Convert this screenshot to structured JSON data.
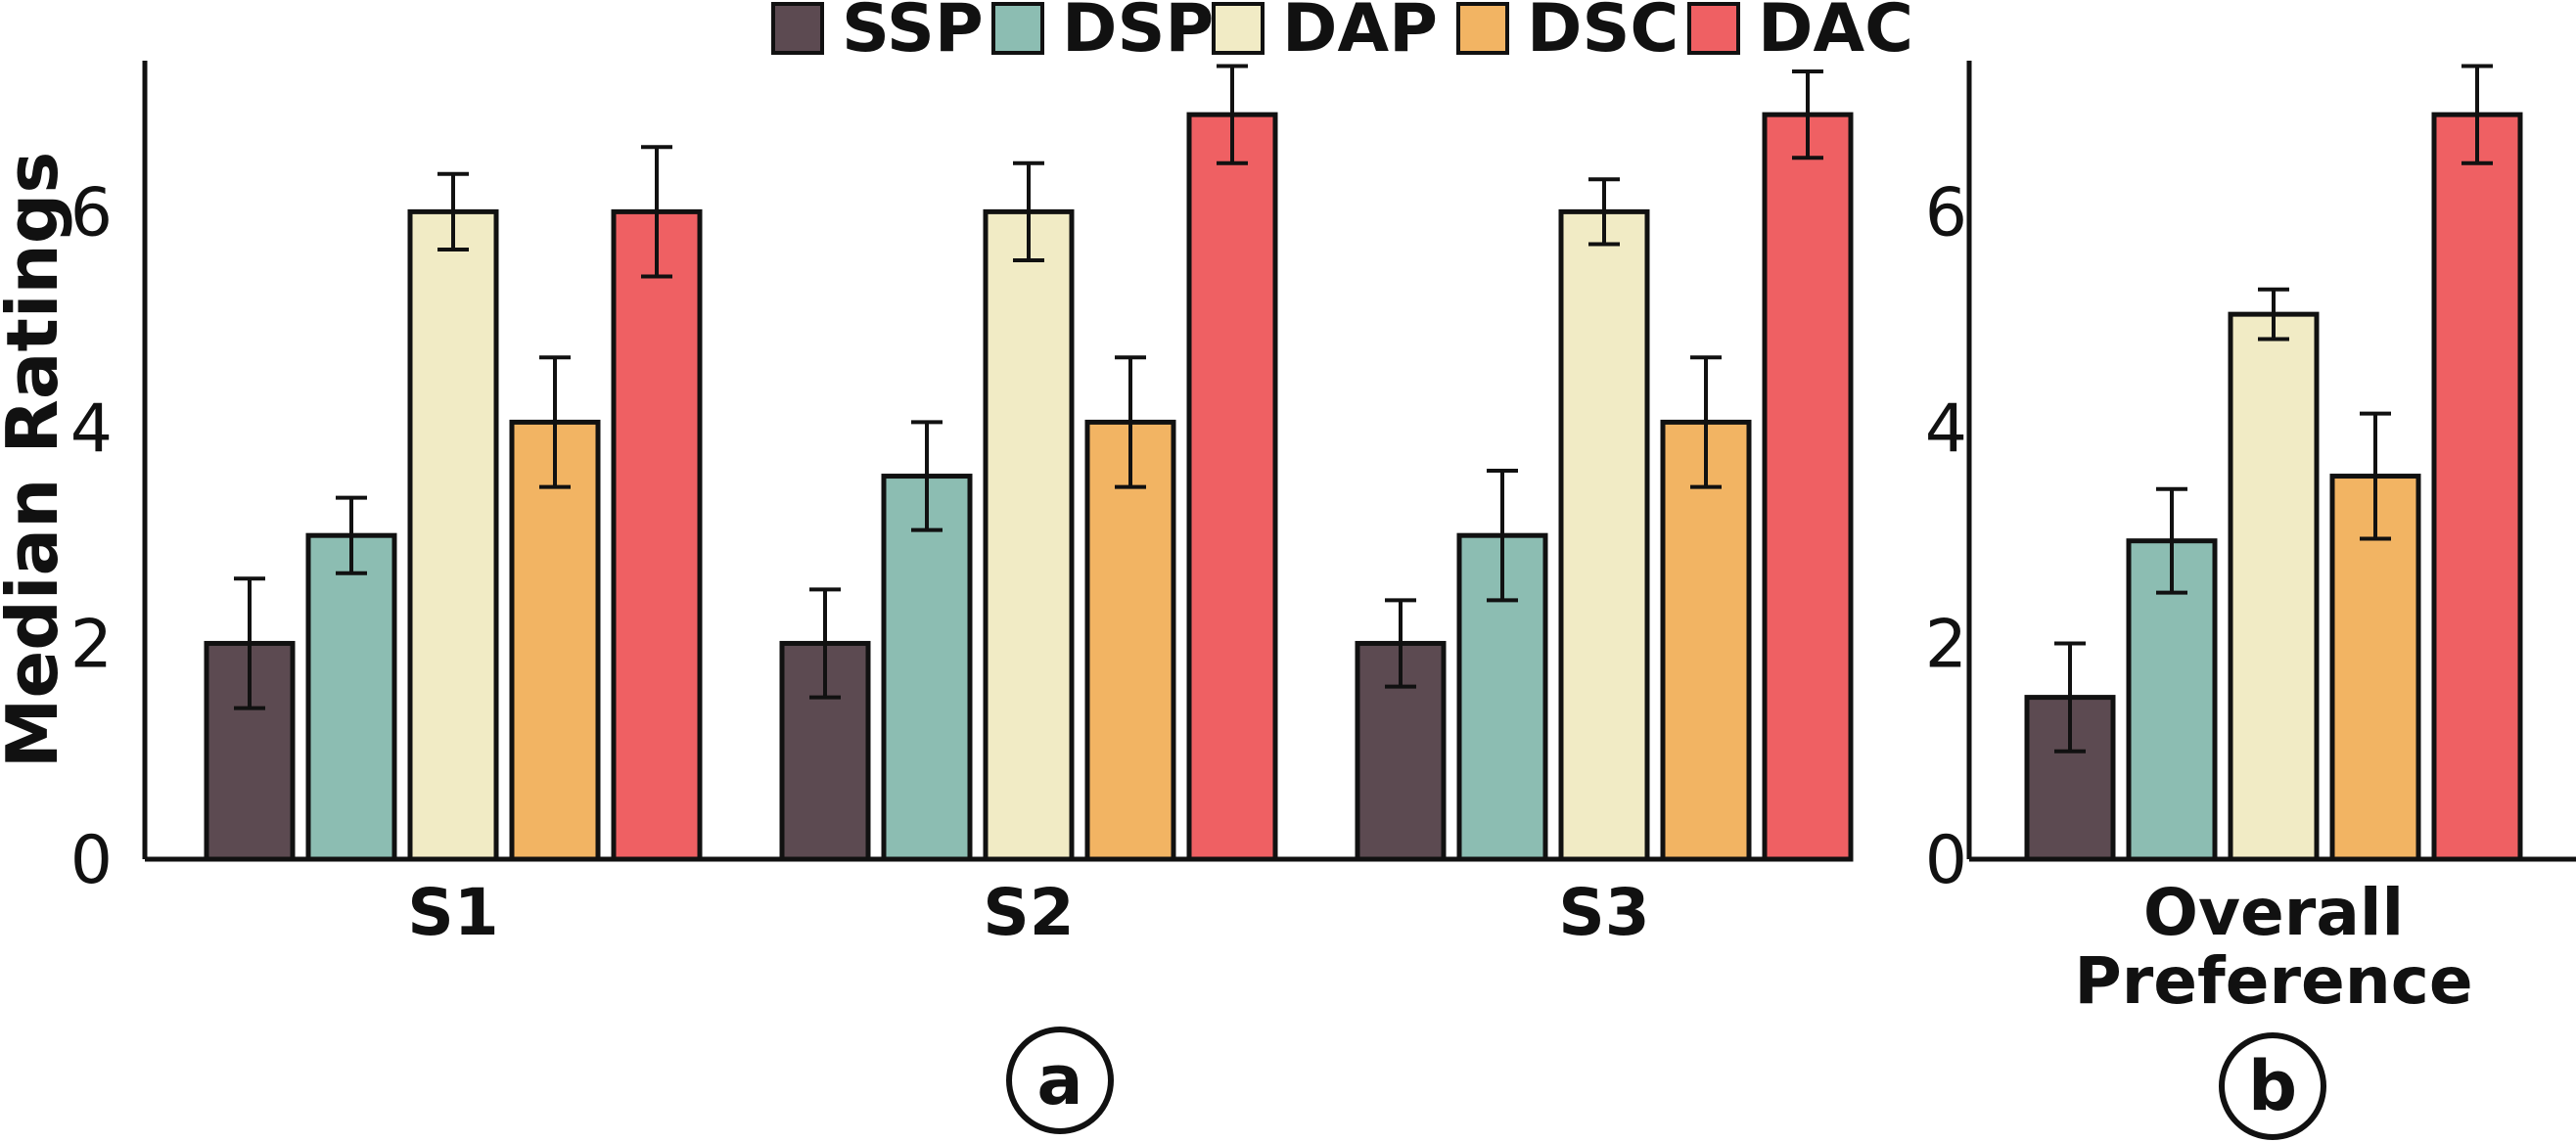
{
  "chart_data": [
    {
      "panel": "a",
      "type": "bar",
      "ylabel": "Median Ratings",
      "ylim": [
        0,
        7.4
      ],
      "yticks": [
        0,
        2,
        4,
        6
      ],
      "categories": [
        "S1",
        "S2",
        "S3"
      ],
      "series": [
        {
          "name": "SSP",
          "values": [
            2,
            2,
            2
          ],
          "err": [
            0.6,
            0.5,
            0.4
          ]
        },
        {
          "name": "DSP",
          "values": [
            3,
            3.55,
            3
          ],
          "err": [
            0.35,
            0.5,
            0.6
          ]
        },
        {
          "name": "DAP",
          "values": [
            6,
            6,
            6
          ],
          "err": [
            0.35,
            0.45,
            0.3
          ]
        },
        {
          "name": "DSC",
          "values": [
            4.05,
            4.05,
            4.05
          ],
          "err": [
            0.6,
            0.6,
            0.6
          ]
        },
        {
          "name": "DAC",
          "values": [
            6,
            6.9,
            6.9
          ],
          "err": [
            0.6,
            0.45,
            0.4
          ]
        }
      ]
    },
    {
      "panel": "b",
      "type": "bar",
      "ylim": [
        0,
        7.4
      ],
      "yticks": [
        0,
        2,
        4,
        6
      ],
      "categories": [
        "Overall Preference"
      ],
      "category_lines": [
        "Overall",
        "Preference"
      ],
      "series": [
        {
          "name": "SSP",
          "values": [
            1.5
          ],
          "err": [
            0.5
          ]
        },
        {
          "name": "DSP",
          "values": [
            2.95
          ],
          "err": [
            0.48
          ]
        },
        {
          "name": "DAP",
          "values": [
            5.05
          ],
          "err": [
            0.23
          ]
        },
        {
          "name": "DSC",
          "values": [
            3.55
          ],
          "err": [
            0.58
          ]
        },
        {
          "name": "DAC",
          "values": [
            6.9
          ],
          "err": [
            0.45
          ]
        }
      ]
    }
  ],
  "legend": [
    {
      "name": "SSP",
      "color": "#5C4A51"
    },
    {
      "name": "DSP",
      "color": "#8CBDB2"
    },
    {
      "name": "DAP",
      "color": "#F1EBC5"
    },
    {
      "name": "DSC",
      "color": "#F2B463"
    },
    {
      "name": "DAC",
      "color": "#EF6063"
    }
  ],
  "panel_labels": {
    "a": "a",
    "b": "b"
  }
}
